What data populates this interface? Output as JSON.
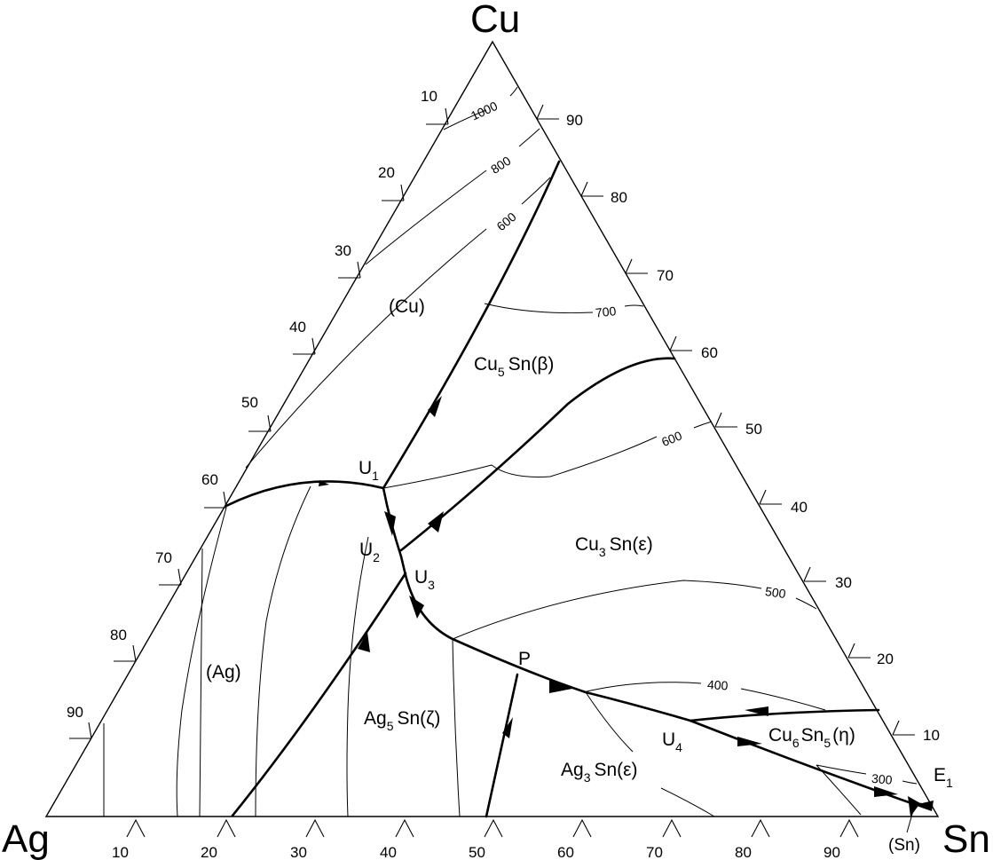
{
  "diagram": {
    "type": "ternary-liquidus-projection",
    "corners": {
      "top": "Cu",
      "left": "Ag",
      "right": "Sn"
    },
    "left_edge_ticks": [
      "10",
      "20",
      "30",
      "40",
      "50",
      "60",
      "70",
      "80",
      "90"
    ],
    "right_edge_ticks": [
      "90",
      "80",
      "70",
      "60",
      "50",
      "40",
      "30",
      "20",
      "10"
    ],
    "bottom_edge_ticks": [
      "10",
      "20",
      "30",
      "40",
      "50",
      "60",
      "70",
      "80",
      "90"
    ],
    "isotherms": [
      "1000",
      "800",
      "600",
      "700",
      "600",
      "500",
      "400",
      "300"
    ],
    "phases": {
      "cu": "(Cu)",
      "cu5sn_main": "Cu",
      "cu5sn_sub": "5",
      "cu5sn_rest": "Sn(β)",
      "cu3sn_main": "Cu",
      "cu3sn_sub": "3",
      "cu3sn_rest": "Sn(ε)",
      "ag": "(Ag)",
      "ag5sn_main": "Ag",
      "ag5sn_sub": "5",
      "ag5sn_rest": "Sn(ζ)",
      "ag3sn_main": "Ag",
      "ag3sn_sub": "3",
      "ag3sn_rest": "Sn(ε)",
      "cu6sn5_main": "Cu",
      "cu6sn5_sub1": "6",
      "cu6sn5_mid": "Sn",
      "cu6sn5_sub2": "5",
      "cu6sn5_rest": "(η)",
      "sn": "(Sn)"
    },
    "invariant_points": {
      "u1_main": "U",
      "u1_sub": "1",
      "u2_main": "U",
      "u2_sub": "2",
      "u3_main": "U",
      "u3_sub": "3",
      "u4_main": "U",
      "u4_sub": "4",
      "p": "P",
      "e1_main": "E",
      "e1_sub": "1"
    }
  }
}
